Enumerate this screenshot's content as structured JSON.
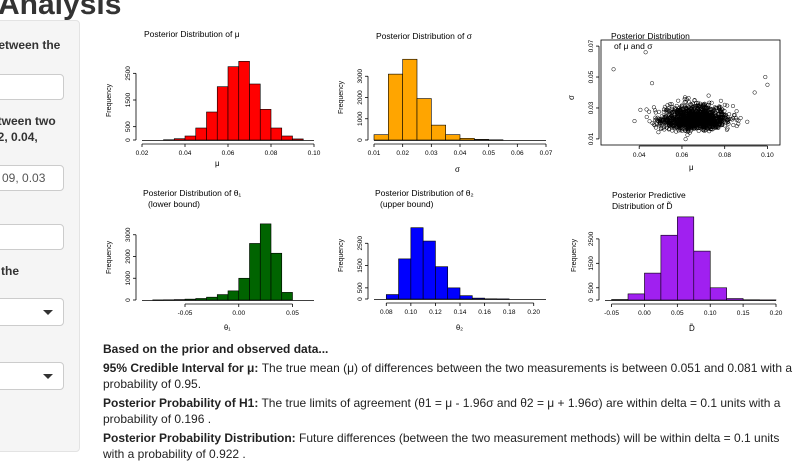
{
  "page": {
    "title": "Analysis"
  },
  "sidebar": {
    "label1": "between the",
    "label2_line1": "etween two",
    "label2_line2": "02, 0.04,",
    "input2_value": "09, 0.03",
    "label4": "e the"
  },
  "plots": [
    {
      "title": "Posterior Distribution of μ",
      "xlabel": "μ",
      "ylabel": "Frequency",
      "color": "#ff0000"
    },
    {
      "title": "Posterior Distribution of σ",
      "xlabel": "σ",
      "ylabel": "Frequency",
      "color": "#ffa500"
    },
    {
      "title_line1": "Posterior Distribution",
      "title_line2": "of μ and σ",
      "xlabel": "μ",
      "ylabel": "σ"
    },
    {
      "title_line1": "Posterior Distribution of θ₁",
      "title_line2": "(lower bound)",
      "xlabel": "θ₁",
      "ylabel": "Frequency",
      "color": "#006400"
    },
    {
      "title_line1": "Posterior Distribution of θ₂",
      "title_line2": "(upper bound)",
      "xlabel": "θ₂",
      "ylabel": "Frequency",
      "color": "#0000ff"
    },
    {
      "title_line1": "Posterior Predictive",
      "title_line2": "Distribution of D̃",
      "xlabel": "D̃",
      "ylabel": "Frequency",
      "color": "#a020f0"
    }
  ],
  "chart_data": [
    {
      "type": "bar",
      "title": "Posterior Distribution of μ",
      "xlabel": "μ",
      "ylabel": "Frequency",
      "bin_edges": [
        0.03,
        0.035,
        0.04,
        0.045,
        0.05,
        0.055,
        0.06,
        0.065,
        0.07,
        0.075,
        0.08,
        0.085,
        0.09,
        0.095
      ],
      "values": [
        10,
        50,
        150,
        450,
        1050,
        2000,
        2750,
        2950,
        2100,
        1150,
        450,
        150,
        40
      ],
      "xticks": [
        0.02,
        0.04,
        0.06,
        0.08,
        0.1
      ],
      "xtick_labels": [
        "0.02",
        "0.04",
        "0.06",
        "0.08",
        "0.10"
      ],
      "xlim": [
        0.02,
        0.1
      ],
      "yticks": [
        0,
        500,
        1500,
        2500
      ],
      "ylim": [
        0,
        3000
      ]
    },
    {
      "type": "bar",
      "title": "Posterior Distribution of σ",
      "xlabel": "σ",
      "ylabel": "Frequency",
      "bin_edges": [
        0.01,
        0.015,
        0.02,
        0.025,
        0.03,
        0.035,
        0.04,
        0.045,
        0.05,
        0.055
      ],
      "values": [
        250,
        3100,
        3800,
        1950,
        700,
        250,
        80,
        30,
        10
      ],
      "xticks": [
        0.01,
        0.02,
        0.03,
        0.04,
        0.05,
        0.06,
        0.07
      ],
      "xtick_labels": [
        "0.01",
        "0.02",
        "0.03",
        "0.04",
        "0.05",
        "0.06",
        "0.07"
      ],
      "xlim": [
        0.01,
        0.07
      ],
      "yticks": [
        0,
        1000,
        2000,
        3000
      ],
      "ylim": [
        0,
        4000
      ]
    },
    {
      "type": "scatter",
      "title": "Posterior Distribution of μ and σ",
      "xlabel": "μ",
      "ylabel": "σ",
      "mean": [
        0.066,
        0.022
      ],
      "sd": [
        0.0075,
        0.0055
      ],
      "n": 1400,
      "outliers": [
        [
          0.028,
          0.055
        ],
        [
          0.043,
          0.066
        ],
        [
          0.1,
          0.045
        ],
        [
          0.099,
          0.05
        ],
        [
          0.094,
          0.04
        ],
        [
          0.046,
          0.046
        ]
      ],
      "xticks": [
        0.04,
        0.06,
        0.08,
        0.1
      ],
      "xtick_labels": [
        "0.04",
        "0.06",
        "0.08",
        "0.10"
      ],
      "xlim": [
        0.024,
        0.104
      ],
      "yticks": [
        0.01,
        0.03,
        0.05,
        0.07
      ],
      "ytick_labels": [
        "0.01",
        "0.03",
        "0.05",
        "0.07"
      ],
      "ylim": [
        0.008,
        0.072
      ]
    },
    {
      "type": "bar",
      "title": "Posterior Distribution of θ1 (lower bound)",
      "xlabel": "θ1",
      "ylabel": "Frequency",
      "bin_edges": [
        -0.08,
        -0.07,
        -0.06,
        -0.05,
        -0.04,
        -0.03,
        -0.02,
        -0.01,
        0.0,
        0.01,
        0.02,
        0.03,
        0.04,
        0.05
      ],
      "values": [
        5,
        10,
        20,
        40,
        70,
        130,
        250,
        420,
        1000,
        2600,
        3500,
        2150,
        350
      ],
      "xticks": [
        -0.05,
        0.0,
        0.05
      ],
      "xtick_labels": [
        "-0.05",
        "0.00",
        "0.05"
      ],
      "xlim": [
        -0.09,
        0.07
      ],
      "yticks": [
        0,
        1000,
        2000,
        3000
      ],
      "ylim": [
        0,
        4000
      ]
    },
    {
      "type": "bar",
      "title": "Posterior Distribution of θ2 (upper bound)",
      "xlabel": "θ2",
      "ylabel": "Frequency",
      "bin_edges": [
        0.08,
        0.09,
        0.1,
        0.11,
        0.12,
        0.13,
        0.14,
        0.15,
        0.16,
        0.17,
        0.18
      ],
      "values": [
        200,
        1800,
        3200,
        2600,
        1450,
        500,
        150,
        40,
        10,
        5
      ],
      "xticks": [
        0.08,
        0.1,
        0.12,
        0.14,
        0.16,
        0.18,
        0.2
      ],
      "xtick_labels": [
        "0.08",
        "0.10",
        "0.12",
        "0.14",
        "0.16",
        "0.18",
        "0.20"
      ],
      "xlim": [
        0.07,
        0.21
      ],
      "yticks": [
        0,
        500,
        1500,
        2500
      ],
      "ylim": [
        0,
        3500
      ]
    },
    {
      "type": "bar",
      "title": "Posterior Predictive Distribution of D̃",
      "xlabel": "D̃",
      "ylabel": "Frequency",
      "bin_edges": [
        -0.05,
        -0.025,
        0.0,
        0.025,
        0.05,
        0.075,
        0.1,
        0.125,
        0.15,
        0.175,
        0.2
      ],
      "values": [
        20,
        250,
        1100,
        2650,
        3400,
        2000,
        500,
        60,
        10,
        5
      ],
      "xticks": [
        -0.05,
        0.0,
        0.05,
        0.1,
        0.15,
        0.2
      ],
      "xtick_labels": [
        "-0.05",
        "0.00",
        "0.05",
        "0.10",
        "0.15",
        "0.20"
      ],
      "xlim": [
        -0.06,
        0.2
      ],
      "yticks": [
        0,
        500,
        1500,
        2500
      ],
      "ylim": [
        0,
        3600
      ]
    }
  ],
  "results": {
    "heading": "Based on the prior and observed data...",
    "ci_label": "95% Credible Interval for μ:",
    "ci_text": " The true mean (μ) of differences between the two measurements is between 0.051 and 0.081 with a probability of 0.95.",
    "h1_label": "Posterior Probability of H1:",
    "h1_text": " The true limits of agreement (θ1 = μ - 1.96σ and θ2 = μ + 1.96σ) are within delta = 0.1 units with a probability of 0.196 .",
    "ppd_label": "Posterior Probability Distribution:",
    "ppd_text": " Future differences (between the two measurement methods) will be within delta = 0.1 units with a probability of 0.922 ."
  }
}
